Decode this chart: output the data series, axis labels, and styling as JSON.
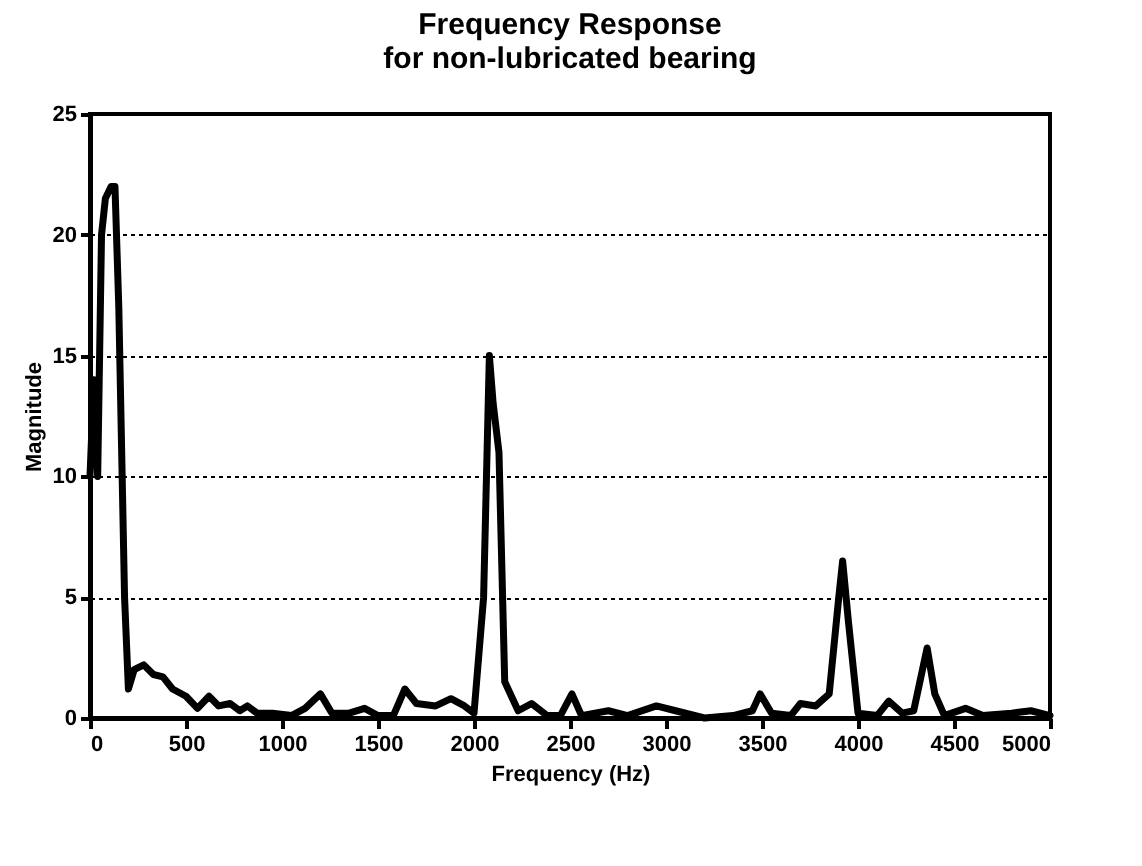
{
  "chart_data": {
    "type": "line",
    "title": "Frequency Response\nfor non-lubricated bearing",
    "xlabel": "Frequency (Hz)",
    "ylabel": "Magnitude",
    "x": [
      0,
      20,
      40,
      60,
      80,
      110,
      130,
      150,
      180,
      200,
      230,
      280,
      330,
      380,
      430,
      500,
      560,
      620,
      670,
      730,
      780,
      820,
      870,
      950,
      1050,
      1120,
      1200,
      1260,
      1350,
      1430,
      1500,
      1580,
      1640,
      1700,
      1800,
      1880,
      1950,
      2000,
      2050,
      2080,
      2100,
      2130,
      2160,
      2230,
      2300,
      2380,
      2450,
      2510,
      2560,
      2700,
      2800,
      2950,
      3050,
      3200,
      3350,
      3450,
      3490,
      3550,
      3650,
      3700,
      3780,
      3850,
      3900,
      3920,
      3950,
      4000,
      4100,
      4160,
      4230,
      4290,
      4360,
      4400,
      4450,
      4560,
      4650,
      4800,
      4900,
      5000
    ],
    "series": [
      {
        "color": "#000000",
        "values": [
          10,
          14,
          10,
          20,
          21.5,
          22,
          22,
          17,
          5,
          1.2,
          2,
          2.2,
          1.8,
          1.7,
          1.2,
          0.9,
          0.4,
          0.9,
          0.5,
          0.6,
          0.3,
          0.5,
          0.2,
          0.2,
          0.1,
          0.4,
          1,
          0.2,
          0.2,
          0.4,
          0.1,
          0.1,
          1.2,
          0.6,
          0.5,
          0.8,
          0.5,
          0.2,
          5,
          15,
          13,
          11,
          1.5,
          0.3,
          0.6,
          0.1,
          0.1,
          1,
          0.1,
          0.3,
          0.1,
          0.5,
          0.3,
          0,
          0.1,
          0.3,
          1,
          0.2,
          0.1,
          0.6,
          0.5,
          1,
          5,
          6.5,
          4,
          0.2,
          0.1,
          0.7,
          0.2,
          0.3,
          2.9,
          1,
          0.1,
          0.4,
          0.1,
          0.2,
          0.3,
          0.1
        ]
      }
    ],
    "xlim": [
      0,
      5000
    ],
    "xticks": [
      0,
      500,
      1000,
      1500,
      2000,
      2500,
      3000,
      3500,
      4000,
      4500,
      5000
    ],
    "ylim": [
      0,
      25
    ],
    "yticks": [
      0,
      5,
      10,
      15,
      20,
      25
    ],
    "grid": "y",
    "marker": "none",
    "line_style": "solid"
  }
}
